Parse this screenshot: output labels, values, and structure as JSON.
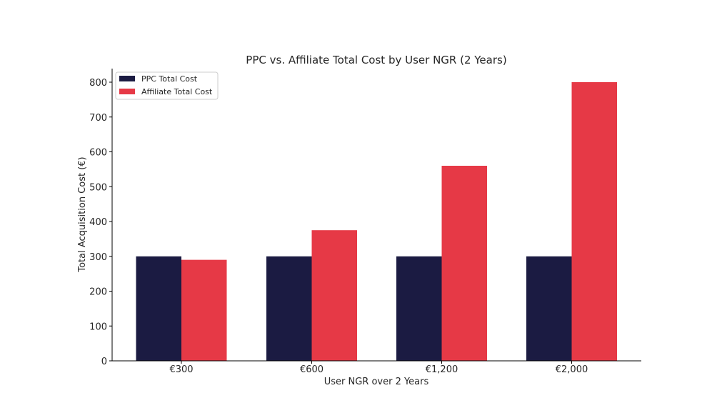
{
  "chart_data": {
    "type": "bar",
    "title": "PPC vs. Affiliate Total Cost by User NGR (2 Years)",
    "xlabel": "User NGR over 2 Years",
    "ylabel": "Total Acquisition Cost (€)",
    "categories": [
      "€300",
      "€600",
      "€1,200",
      "€2,000"
    ],
    "series": [
      {
        "name": "PPC Total Cost",
        "color": "#1b1b42",
        "values": [
          300,
          300,
          300,
          300
        ]
      },
      {
        "name": "Affiliate Total Cost",
        "color": "#e63946",
        "values": [
          290,
          375,
          560,
          800
        ]
      }
    ],
    "ylim": [
      0,
      840
    ],
    "yticks": [
      0,
      100,
      200,
      300,
      400,
      500,
      600,
      700,
      800
    ],
    "grid": false,
    "legend": "top-left"
  }
}
